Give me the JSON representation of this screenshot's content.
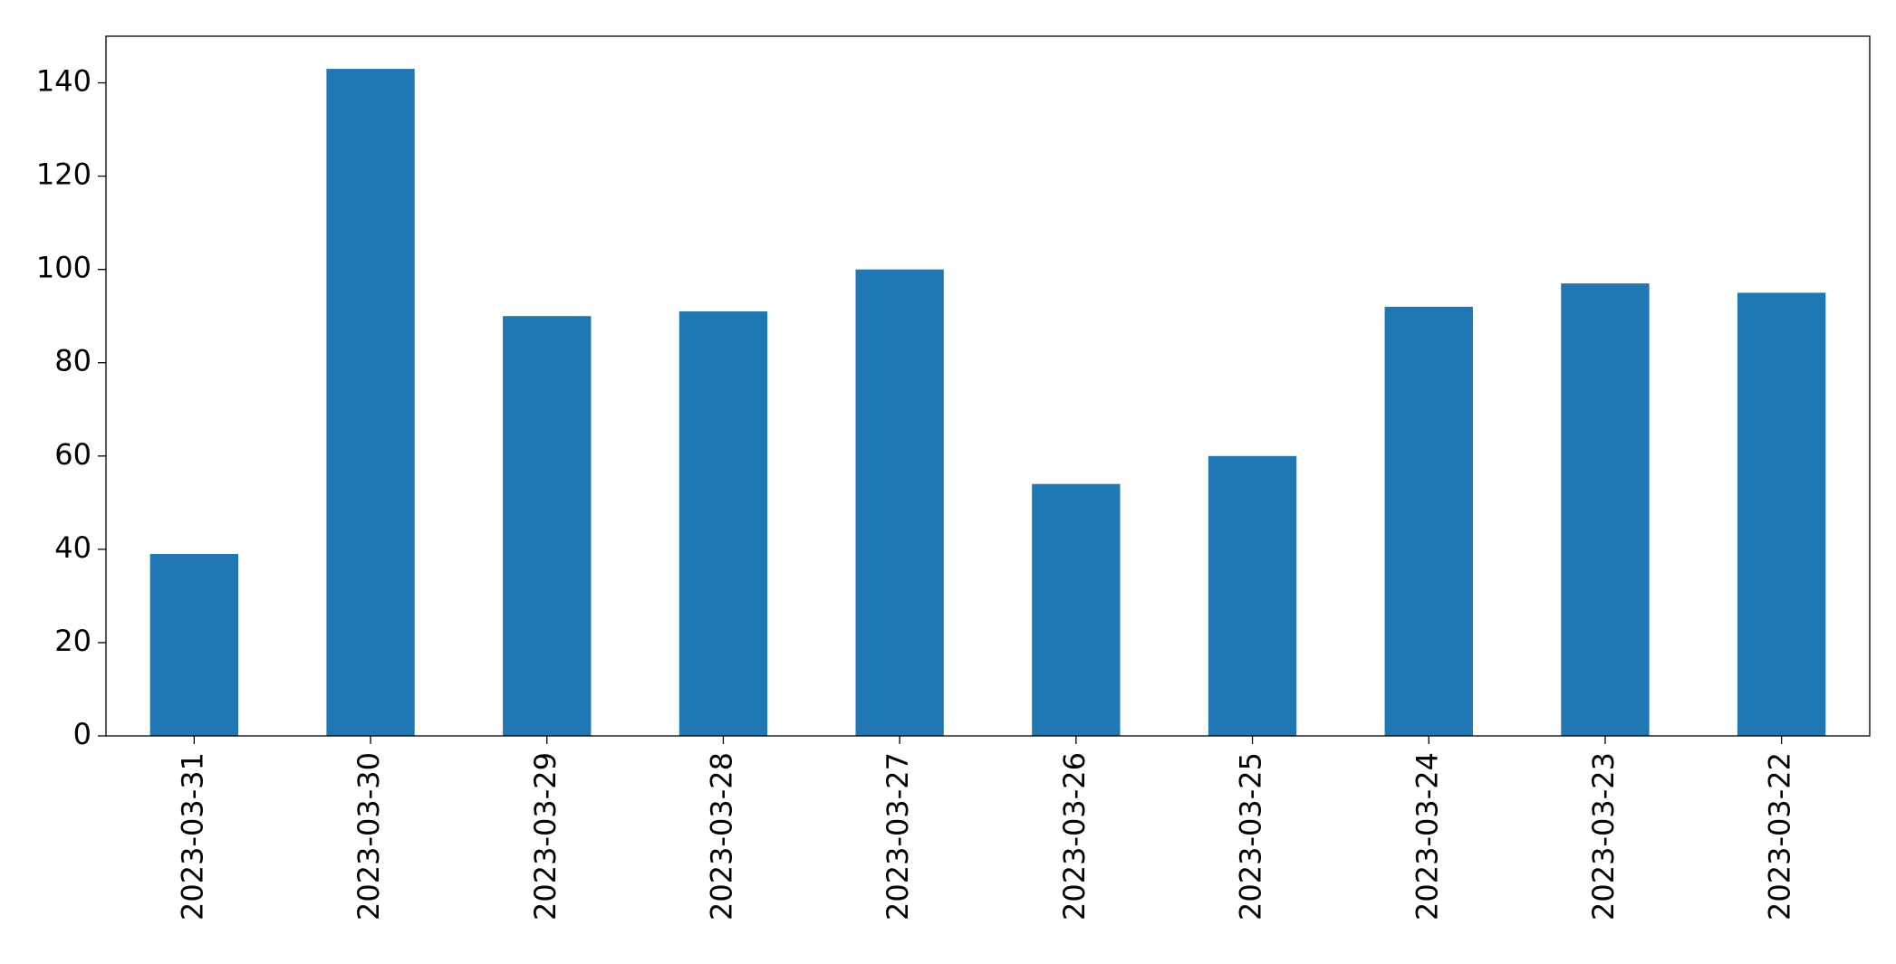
{
  "chart_data": {
    "type": "bar",
    "categories": [
      "2023-03-31",
      "2023-03-30",
      "2023-03-29",
      "2023-03-28",
      "2023-03-27",
      "2023-03-26",
      "2023-03-25",
      "2023-03-24",
      "2023-03-23",
      "2023-03-22"
    ],
    "values": [
      39,
      143,
      90,
      91,
      100,
      54,
      60,
      92,
      97,
      95
    ],
    "color": "#1f77b4",
    "ylim": [
      0,
      150
    ],
    "yticks": [
      0,
      20,
      40,
      60,
      80,
      100,
      120,
      140
    ],
    "grid": false
  }
}
